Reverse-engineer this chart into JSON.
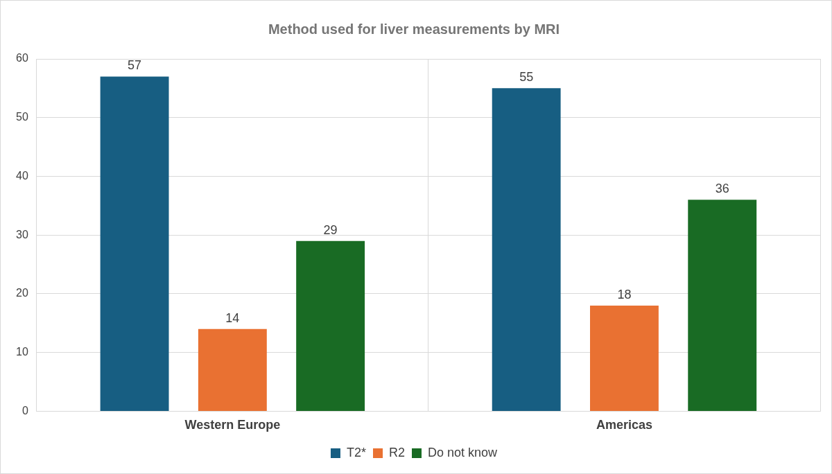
{
  "chart_data": {
    "type": "bar",
    "title": "Method used for liver measurements by MRI",
    "categories": [
      "Western Europe",
      "Americas"
    ],
    "series": [
      {
        "name": "T2*",
        "color": "#175e82",
        "values": [
          57,
          55
        ]
      },
      {
        "name": "R2",
        "color": "#e97132",
        "values": [
          14,
          18
        ]
      },
      {
        "name": "Do not know",
        "color": "#196b24",
        "values": [
          29,
          36
        ]
      }
    ],
    "ylim": [
      0,
      60
    ],
    "yticks": [
      0,
      10,
      20,
      30,
      40,
      50,
      60
    ],
    "grid": true,
    "legend": "bottom",
    "data_labels": true
  }
}
